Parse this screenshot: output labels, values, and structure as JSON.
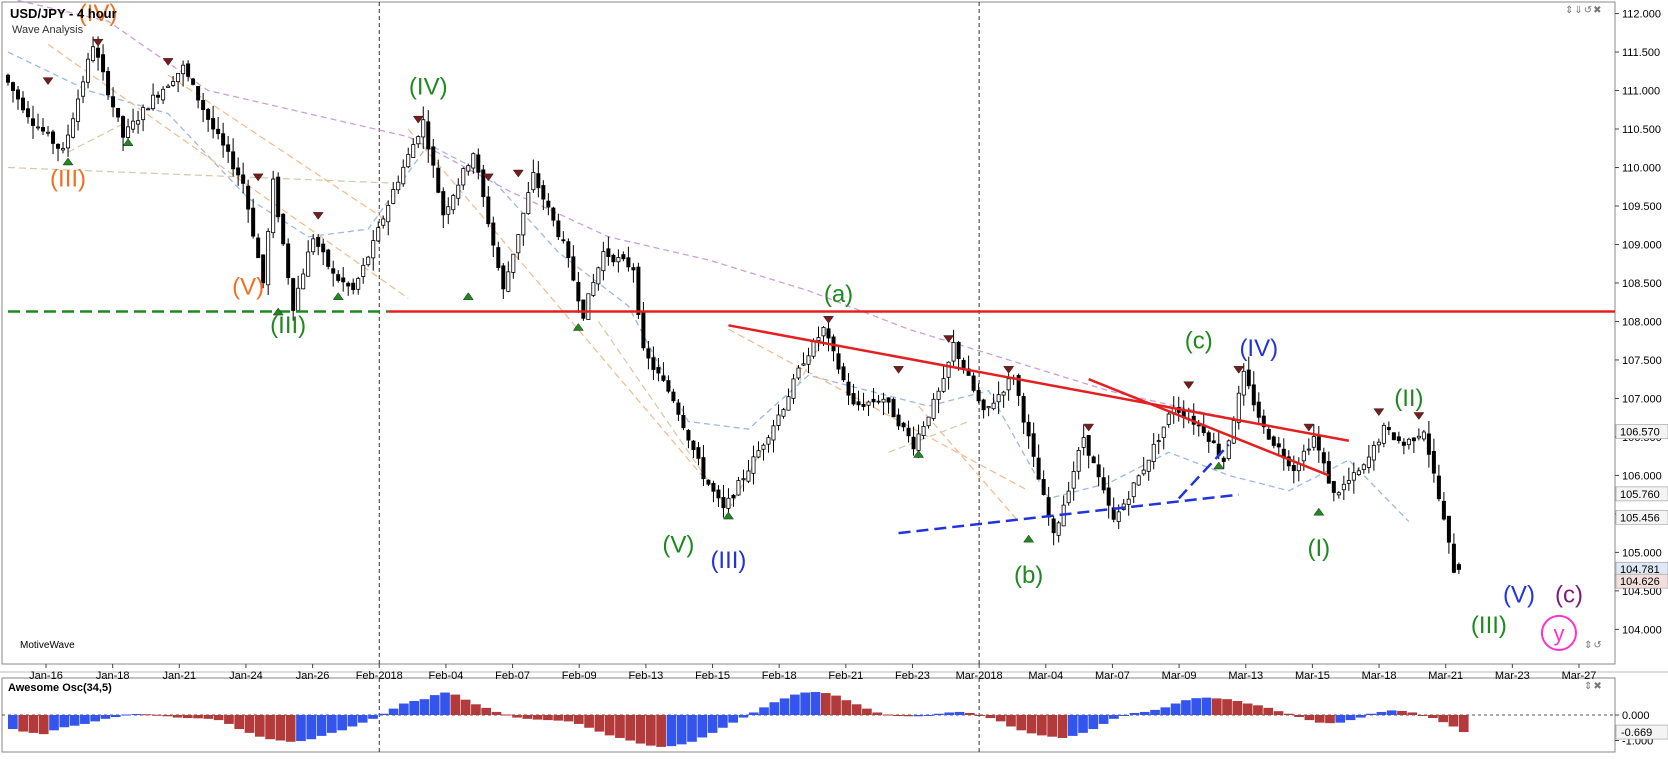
{
  "header": {
    "title": "USD/JPY - 4 hour",
    "subtitle": "Wave Analysis",
    "brand": "MotiveWave",
    "window_controls": "⇕⇓↺✖",
    "osc_controls": "⇕✖",
    "nav_arrows": "⇕↺"
  },
  "chart_data": [
    {
      "type": "candlestick",
      "title": "USD/JPY - 4 hour",
      "subtitle": "Wave Analysis",
      "ylim": [
        103.55,
        112.15
      ],
      "y_ticks": [
        "112.000",
        "111.500",
        "111.000",
        "110.500",
        "110.000",
        "109.500",
        "109.000",
        "108.500",
        "108.000",
        "107.500",
        "107.000",
        "106.500",
        "106.000",
        "105.500",
        "105.000",
        "104.500",
        "104.000"
      ],
      "x_ticks": [
        "Jan-16",
        "Jan-18",
        "Jan-21",
        "Jan-24",
        "Jan-26",
        "Feb-2018",
        "Feb-04",
        "Feb-07",
        "Feb-09",
        "Feb-13",
        "Feb-15",
        "Feb-18",
        "Feb-21",
        "Feb-23",
        "Mar-2018",
        "Mar-04",
        "Mar-07",
        "Mar-09",
        "Mar-13",
        "Mar-15",
        "Mar-18",
        "Mar-21",
        "Mar-23",
        "Mar-27"
      ],
      "period_separators": [
        "Feb-2018",
        "Mar-2018"
      ],
      "price_path": [
        [
          0,
          111.2
        ],
        [
          3,
          110.6
        ],
        [
          6,
          110.2
        ],
        [
          9,
          111.6
        ],
        [
          12,
          110.4
        ],
        [
          15,
          110.9
        ],
        [
          18,
          111.3
        ],
        [
          21,
          110.5
        ],
        [
          24,
          109.8
        ],
        [
          26,
          108.5
        ],
        [
          27,
          109.8
        ],
        [
          29,
          108.2
        ],
        [
          31,
          109.1
        ],
        [
          33,
          108.6
        ],
        [
          35,
          108.4
        ],
        [
          37,
          109.0
        ],
        [
          39,
          109.7
        ],
        [
          42,
          110.6
        ],
        [
          44,
          109.4
        ],
        [
          47,
          110.2
        ],
        [
          50,
          108.4
        ],
        [
          53,
          109.9
        ],
        [
          56,
          109.0
        ],
        [
          58,
          108.1
        ],
        [
          60,
          108.9
        ],
        [
          63,
          108.7
        ],
        [
          64,
          107.6
        ],
        [
          67,
          107.0
        ],
        [
          70,
          106.0
        ],
        [
          72,
          105.55
        ],
        [
          75,
          106.2
        ],
        [
          78,
          106.9
        ],
        [
          80,
          107.5
        ],
        [
          82,
          107.9
        ],
        [
          85,
          106.9
        ],
        [
          88,
          107.0
        ],
        [
          91,
          106.4
        ],
        [
          94,
          107.2
        ],
        [
          95,
          107.7
        ],
        [
          98,
          106.8
        ],
        [
          101,
          107.3
        ],
        [
          103,
          106.2
        ],
        [
          105,
          105.2
        ],
        [
          108,
          106.5
        ],
        [
          111,
          105.4
        ],
        [
          114,
          106.1
        ],
        [
          117,
          106.9
        ],
        [
          120,
          106.6
        ],
        [
          122,
          106.2
        ],
        [
          124,
          107.3
        ],
        [
          126,
          106.6
        ],
        [
          129,
          106.1
        ],
        [
          131,
          106.5
        ],
        [
          133,
          105.75
        ],
        [
          136,
          106.1
        ],
        [
          138,
          106.6
        ],
        [
          140,
          106.4
        ],
        [
          142,
          106.6
        ],
        [
          143,
          106.0
        ],
        [
          144,
          105.4
        ],
        [
          145,
          104.78
        ]
      ],
      "last_candle": {
        "open": 104.84,
        "close": 104.78,
        "high": 104.87,
        "low": 104.72
      },
      "price_labels": [
        {
          "text": "106.570",
          "value": 106.57,
          "style": "line"
        },
        {
          "text": "105.760",
          "value": 105.76,
          "style": "line"
        },
        {
          "text": "105.456",
          "value": 105.456,
          "style": "line"
        },
        {
          "text": "104.781",
          "value": 104.781,
          "style": "current"
        },
        {
          "text": "104.626",
          "value": 104.626,
          "style": "low"
        }
      ],
      "horizontal_levels": [
        {
          "value": 108.13,
          "color": "#e32020",
          "style": "solid",
          "from_bar": 38,
          "to_bar": 150
        },
        {
          "value": 108.13,
          "color": "#1e8a1e",
          "style": "dashed",
          "from_bar": 0,
          "to_bar": 38
        }
      ],
      "trend_lines": [
        {
          "from": [
            72,
            107.95
          ],
          "to": [
            134,
            106.45
          ],
          "color": "#e32020",
          "style": "solid"
        },
        {
          "from": [
            108,
            107.25
          ],
          "to": [
            132,
            106.0
          ],
          "color": "#e32020",
          "style": "solid"
        },
        {
          "from": [
            89,
            105.25
          ],
          "to": [
            123,
            105.75
          ],
          "color": "#2233dd",
          "style": "dashed"
        },
        {
          "from": [
            117,
            105.7
          ],
          "to": [
            122,
            106.4
          ],
          "color": "#2233dd",
          "style": "dashed"
        }
      ],
      "moving_averages": [
        {
          "color": "#c9a0dc",
          "points": [
            [
              0,
              112.2
            ],
            [
              10,
              111.9
            ],
            [
              20,
              111.0
            ],
            [
              30,
              110.7
            ],
            [
              40,
              110.4
            ],
            [
              50,
              109.7
            ],
            [
              60,
              109.1
            ],
            [
              70,
              108.8
            ],
            [
              80,
              108.4
            ],
            [
              90,
              107.9
            ],
            [
              100,
              107.5
            ],
            [
              110,
              107.1
            ],
            [
              120,
              106.8
            ],
            [
              128,
              106.6
            ]
          ]
        },
        {
          "color": "#9db8e6",
          "points": [
            [
              0,
              111.5
            ],
            [
              8,
              111.0
            ],
            [
              16,
              110.7
            ],
            [
              24,
              109.6
            ],
            [
              30,
              109.1
            ],
            [
              36,
              109.2
            ],
            [
              42,
              110.3
            ],
            [
              48,
              109.9
            ],
            [
              55,
              108.9
            ],
            [
              62,
              108.2
            ],
            [
              68,
              106.7
            ],
            [
              74,
              106.6
            ],
            [
              80,
              107.3
            ],
            [
              86,
              107.1
            ],
            [
              92,
              106.9
            ],
            [
              98,
              107.1
            ],
            [
              104,
              105.7
            ],
            [
              110,
              105.9
            ],
            [
              116,
              106.3
            ],
            [
              122,
              106.0
            ],
            [
              128,
              105.8
            ],
            [
              134,
              106.2
            ],
            [
              140,
              105.4
            ]
          ]
        }
      ],
      "helper_lines": [
        {
          "from": [
            0,
            110.0
          ],
          "to": [
            38,
            109.8
          ],
          "color": "#d4c8a8"
        },
        {
          "from": [
            4,
            111.6
          ],
          "to": [
            40,
            108.3
          ],
          "color": "#f5b98a"
        },
        {
          "from": [
            16,
            111.2
          ],
          "to": [
            38,
            109.3
          ],
          "color": "#f5b98a"
        },
        {
          "from": [
            40,
            110.5
          ],
          "to": [
            70,
            105.9
          ],
          "color": "#f5b98a"
        },
        {
          "from": [
            72,
            107.9
          ],
          "to": [
            102,
            105.8
          ],
          "color": "#f5b98a"
        },
        {
          "from": [
            91,
            106.9
          ],
          "to": [
            101,
            105.4
          ],
          "color": "#f5b98a"
        },
        {
          "from": [
            6,
            110.2
          ],
          "to": [
            12,
            110.6
          ],
          "color": "#d4c8a8"
        },
        {
          "from": [
            59,
            108.0
          ],
          "to": [
            72,
            105.55
          ],
          "color": "#d4c8a8"
        },
        {
          "from": [
            72,
            105.55
          ],
          "to": [
            82,
            107.9
          ],
          "color": "#d4c8a8"
        },
        {
          "from": [
            88,
            106.3
          ],
          "to": [
            96,
            106.7
          ],
          "color": "#d4c8a8"
        }
      ],
      "pivot_markers": [
        {
          "bar": 4,
          "value": 111.05,
          "dir": "down"
        },
        {
          "bar": 9,
          "value": 111.55,
          "dir": "down"
        },
        {
          "bar": 16,
          "value": 111.3,
          "dir": "down"
        },
        {
          "bar": 6,
          "value": 110.15,
          "dir": "up"
        },
        {
          "bar": 12,
          "value": 110.4,
          "dir": "up"
        },
        {
          "bar": 25,
          "value": 109.8,
          "dir": "down"
        },
        {
          "bar": 31,
          "value": 109.3,
          "dir": "down"
        },
        {
          "bar": 27,
          "value": 108.2,
          "dir": "up"
        },
        {
          "bar": 33,
          "value": 108.4,
          "dir": "up"
        },
        {
          "bar": 41,
          "value": 110.55,
          "dir": "down"
        },
        {
          "bar": 48,
          "value": 109.8,
          "dir": "down"
        },
        {
          "bar": 51,
          "value": 109.85,
          "dir": "down"
        },
        {
          "bar": 46,
          "value": 108.4,
          "dir": "up"
        },
        {
          "bar": 57,
          "value": 108.0,
          "dir": "up"
        },
        {
          "bar": 72,
          "value": 105.55,
          "dir": "up"
        },
        {
          "bar": 82,
          "value": 107.95,
          "dir": "down"
        },
        {
          "bar": 89,
          "value": 107.3,
          "dir": "down"
        },
        {
          "bar": 94,
          "value": 107.7,
          "dir": "down"
        },
        {
          "bar": 100,
          "value": 107.3,
          "dir": "down"
        },
        {
          "bar": 91,
          "value": 106.35,
          "dir": "up"
        },
        {
          "bar": 102,
          "value": 105.25,
          "dir": "up"
        },
        {
          "bar": 108,
          "value": 106.55,
          "dir": "down"
        },
        {
          "bar": 118,
          "value": 107.1,
          "dir": "down"
        },
        {
          "bar": 123,
          "value": 107.3,
          "dir": "down"
        },
        {
          "bar": 121,
          "value": 106.2,
          "dir": "up"
        },
        {
          "bar": 130,
          "value": 106.55,
          "dir": "down"
        },
        {
          "bar": 131,
          "value": 105.6,
          "dir": "up"
        },
        {
          "bar": 137,
          "value": 106.75,
          "dir": "down"
        },
        {
          "bar": 141,
          "value": 106.7,
          "dir": "down"
        }
      ],
      "wave_labels": [
        {
          "text": "(IV)",
          "bar": 9,
          "value": 111.9,
          "color": "#f07020",
          "size": 24
        },
        {
          "text": "(III)",
          "bar": 6,
          "value": 109.75,
          "color": "#f07020",
          "size": 24
        },
        {
          "text": "(V)",
          "bar": 24,
          "value": 108.35,
          "color": "#f07020",
          "size": 24
        },
        {
          "text": "(III)",
          "bar": 28,
          "value": 107.85,
          "color": "#1e8a1e",
          "size": 24
        },
        {
          "text": "(IV)",
          "bar": 42,
          "value": 110.95,
          "color": "#1e8a1e",
          "size": 24
        },
        {
          "text": "(a)",
          "bar": 83,
          "value": 108.25,
          "color": "#1e8a1e",
          "size": 24
        },
        {
          "text": "(V)",
          "bar": 67,
          "value": 105.0,
          "color": "#1e8a1e",
          "size": 24
        },
        {
          "text": "(III)",
          "bar": 72,
          "value": 104.8,
          "color": "#2233dd",
          "size": 24
        },
        {
          "text": "(b)",
          "bar": 102,
          "value": 104.6,
          "color": "#1e8a1e",
          "size": 24
        },
        {
          "text": "(c)",
          "bar": 119,
          "value": 107.65,
          "color": "#1e8a1e",
          "size": 24
        },
        {
          "text": "(IV)",
          "bar": 125,
          "value": 107.55,
          "color": "#2233dd",
          "size": 24
        },
        {
          "text": "(I)",
          "bar": 131,
          "value": 104.95,
          "color": "#1e8a1e",
          "size": 24
        },
        {
          "text": "(II)",
          "bar": 140,
          "value": 106.9,
          "color": "#1e8a1e",
          "size": 24
        },
        {
          "text": "(III)",
          "bar": 148,
          "value": 103.95,
          "color": "#1e8a1e",
          "size": 24
        },
        {
          "text": "(V)",
          "bar": 151,
          "value": 104.35,
          "color": "#2233dd",
          "size": 24
        },
        {
          "text": "(c)",
          "bar": 156,
          "value": 104.35,
          "color": "#7b1c7b",
          "size": 24
        }
      ],
      "target_circle": {
        "text": "y",
        "bar": 155,
        "value": 103.85,
        "color": "#ff33cc"
      }
    },
    {
      "type": "bar",
      "title": "Awesome Osc(34,5)",
      "y_ticks": [
        "0.000",
        "-1.000"
      ],
      "current_value": "-0.669",
      "ylim": [
        -1.45,
        1.45
      ],
      "up_color": "#3355ee",
      "down_color": "#b23a3a",
      "values": [
        -0.55,
        -0.65,
        -0.7,
        -0.75,
        -0.6,
        -0.48,
        -0.42,
        -0.35,
        -0.25,
        -0.15,
        -0.08,
        0.02,
        0.04,
        0.03,
        0.01,
        -0.05,
        -0.1,
        -0.12,
        -0.13,
        -0.15,
        -0.2,
        -0.35,
        -0.55,
        -0.7,
        -0.85,
        -0.95,
        -1.0,
        -1.05,
        -1.02,
        -0.95,
        -0.82,
        -0.7,
        -0.6,
        -0.45,
        -0.3,
        -0.15,
        0.05,
        0.25,
        0.45,
        0.55,
        0.62,
        0.78,
        0.88,
        0.8,
        0.6,
        0.42,
        0.28,
        0.12,
        0.02,
        -0.1,
        -0.15,
        -0.18,
        -0.2,
        -0.22,
        -0.25,
        -0.35,
        -0.5,
        -0.65,
        -0.8,
        -0.9,
        -1.0,
        -1.12,
        -1.2,
        -1.25,
        -1.22,
        -1.15,
        -1.05,
        -0.88,
        -0.7,
        -0.5,
        -0.3,
        -0.1,
        0.1,
        0.3,
        0.5,
        0.65,
        0.8,
        0.88,
        0.9,
        0.86,
        0.76,
        0.58,
        0.42,
        0.25,
        0.1,
        0.02,
        -0.03,
        -0.05,
        -0.05,
        -0.03,
        0.05,
        0.1,
        0.12,
        0.08,
        -0.04,
        -0.12,
        -0.25,
        -0.45,
        -0.6,
        -0.72,
        -0.8,
        -0.85,
        -0.9,
        -0.82,
        -0.7,
        -0.55,
        -0.35,
        -0.15,
        0.0,
        0.08,
        0.12,
        0.2,
        0.3,
        0.45,
        0.58,
        0.66,
        0.68,
        0.65,
        0.62,
        0.55,
        0.45,
        0.38,
        0.28,
        0.15,
        0.05,
        -0.08,
        -0.2,
        -0.3,
        -0.32,
        -0.3,
        -0.2,
        -0.1,
        0.05,
        0.12,
        0.18,
        0.16,
        0.1,
        0.0,
        -0.12,
        -0.28,
        -0.45,
        -0.669
      ]
    }
  ]
}
